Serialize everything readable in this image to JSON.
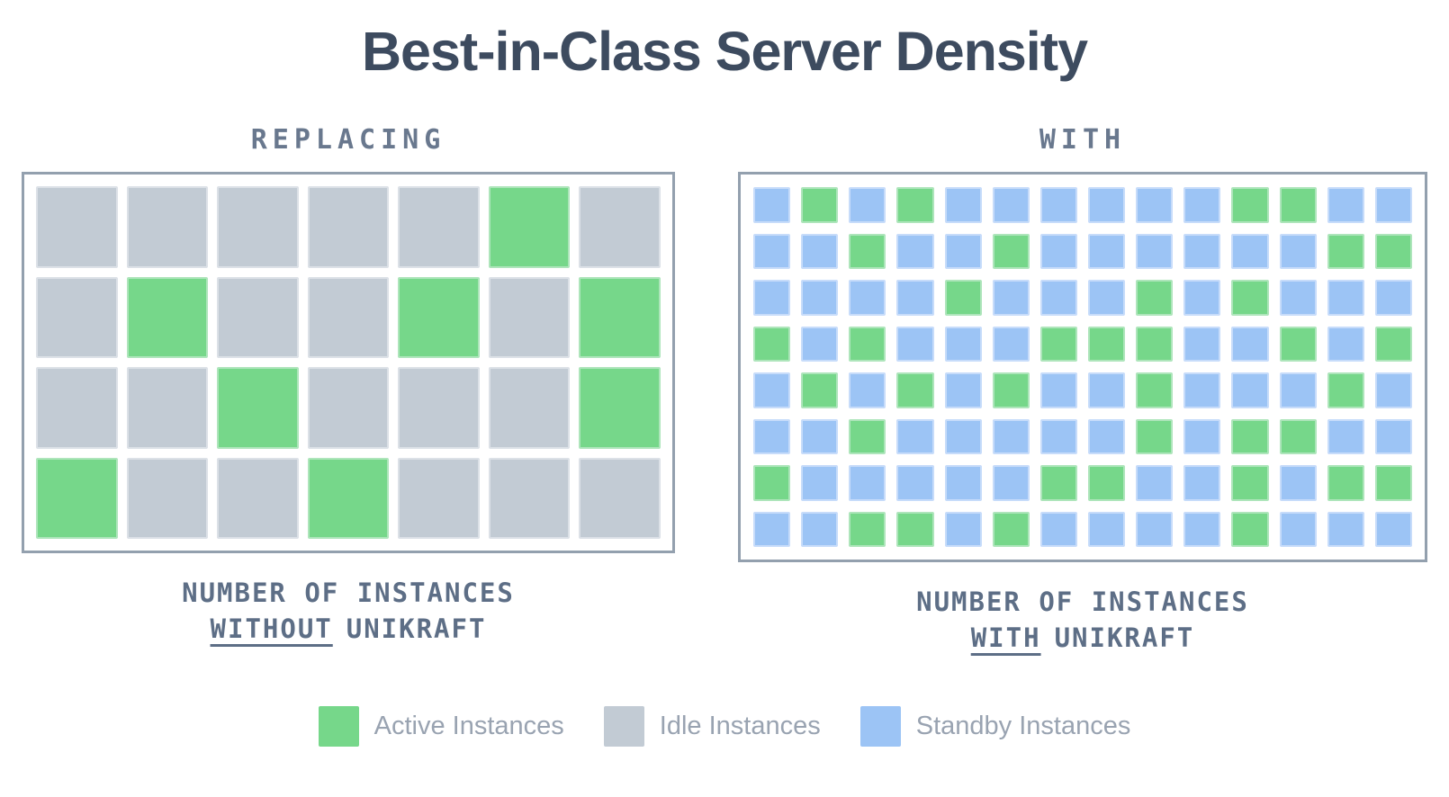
{
  "title": "Best-in-Class Server Density",
  "colors": {
    "background": "#ffffff",
    "active": "#76d78a",
    "idle": "#c2cbd4",
    "standby": "#9cc4f5",
    "active_edge": "#aee5bb",
    "idle_edge": "#dce1e7",
    "standby_edge": "#c7dcfa",
    "panel_border": "#93a0ae",
    "title_text": "#3d4b5f",
    "heading_text": "#69788e",
    "caption_text": "#5d6e86",
    "legend_text": "#99a3b1"
  },
  "left_panel": {
    "heading": "REPLACING",
    "grid": {
      "columns": 7,
      "rows": 4,
      "key": {
        "A": "active",
        "I": "idle"
      },
      "pattern": [
        "IIIIIAI",
        "IAIIAIA",
        "IIAIIIA",
        "AIIAIII"
      ]
    },
    "caption": {
      "line1": "NUMBER OF INSTANCES",
      "emphasis": "WITHOUT",
      "suffix": "UNIKRAFT"
    }
  },
  "right_panel": {
    "heading": "WITH",
    "grid": {
      "columns": 14,
      "rows": 8,
      "key": {
        "A": "active",
        "S": "standby"
      },
      "pattern": [
        "SASASSSSSSAASS",
        "SSASSASSSSSSAA",
        "SSSSASSSASASSS",
        "ASASSSAAASSASA",
        "SASASASSASSSAS",
        "SSASSSSSASAASS",
        "ASSSSSAASSASAA",
        "SSAASASSSSASSS"
      ]
    },
    "caption": {
      "line1": "NUMBER OF INSTANCES",
      "emphasis": "WITH",
      "suffix": "UNIKRAFT"
    }
  },
  "legend": {
    "items": [
      {
        "type": "active",
        "label": "Active Instances"
      },
      {
        "type": "idle",
        "label": "Idle Instances"
      },
      {
        "type": "standby",
        "label": "Standby Instances"
      }
    ]
  },
  "chart_data": [
    {
      "type": "heatmap",
      "title": "REPLACING — NUMBER OF INSTANCES WITHOUT UNIKRAFT",
      "columns": 7,
      "rows": 4,
      "cell_key": {
        "A": "Active Instance",
        "I": "Idle Instance"
      },
      "cells": [
        "IIIIIAI",
        "IAIIAIA",
        "IIAIIIA",
        "AIIAIII"
      ],
      "counts": {
        "active": 8,
        "idle": 20,
        "total": 28
      },
      "legend_position": "bottom"
    },
    {
      "type": "heatmap",
      "title": "WITH — NUMBER OF INSTANCES WITH UNIKRAFT",
      "columns": 14,
      "rows": 8,
      "cell_key": {
        "A": "Active Instance",
        "S": "Standby Instance"
      },
      "cells": [
        "SASASSSSSSAASS",
        "SSASSASSSSSSAA",
        "SSSSASSSASASSS",
        "ASASSSAAASSASA",
        "SASASASSASSSAS",
        "SSASSSSSASAASS",
        "ASSSSSAASSASAA",
        "SSAASASSSSASSS"
      ],
      "counts": {
        "active": 37,
        "standby": 75,
        "total": 112
      },
      "legend_position": "bottom"
    }
  ]
}
